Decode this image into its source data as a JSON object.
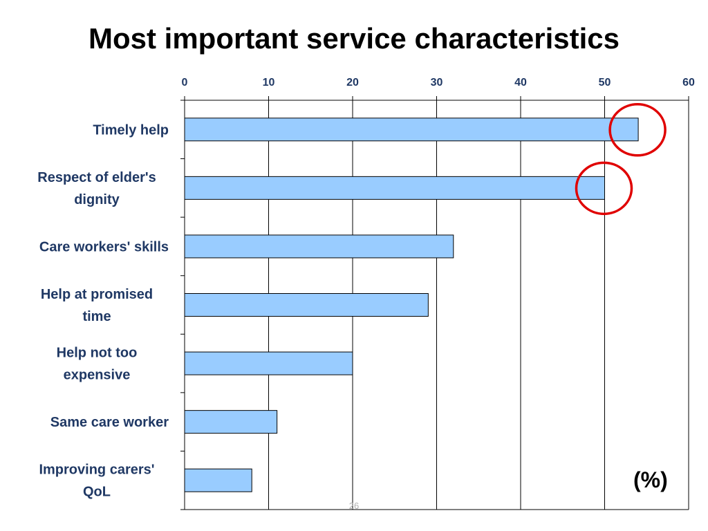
{
  "slide": {
    "title": "Most important service characteristics",
    "number": "26"
  },
  "chart_data": {
    "type": "bar",
    "orientation": "horizontal",
    "categories": [
      "Timely help",
      "Respect of elder's dignity",
      "Care workers' skills",
      "Help at promised time",
      "Help not too expensive",
      "Same care worker",
      "Improving carers' QoL"
    ],
    "category_lines": [
      [
        "Timely help"
      ],
      [
        "Respect of elder's",
        "dignity"
      ],
      [
        "Care workers' skills"
      ],
      [
        "Help at promised",
        "time"
      ],
      [
        "Help not too",
        "expensive"
      ],
      [
        "Same care worker"
      ],
      [
        "Improving carers'",
        "QoL"
      ]
    ],
    "values": [
      54,
      50,
      32,
      29,
      20,
      11,
      8
    ],
    "x_ticks": [
      "0",
      "10",
      "20",
      "30",
      "40",
      "50",
      "60"
    ],
    "xlim": [
      0,
      60
    ],
    "x_axis_position": "top",
    "unit_label": "(%)",
    "grid": true,
    "bar_color": "#99ccff",
    "label_color": "#1f3864",
    "highlighted_categories": [
      "Timely help",
      "Respect of elder's dignity"
    ],
    "highlight_color": "#e00000"
  }
}
